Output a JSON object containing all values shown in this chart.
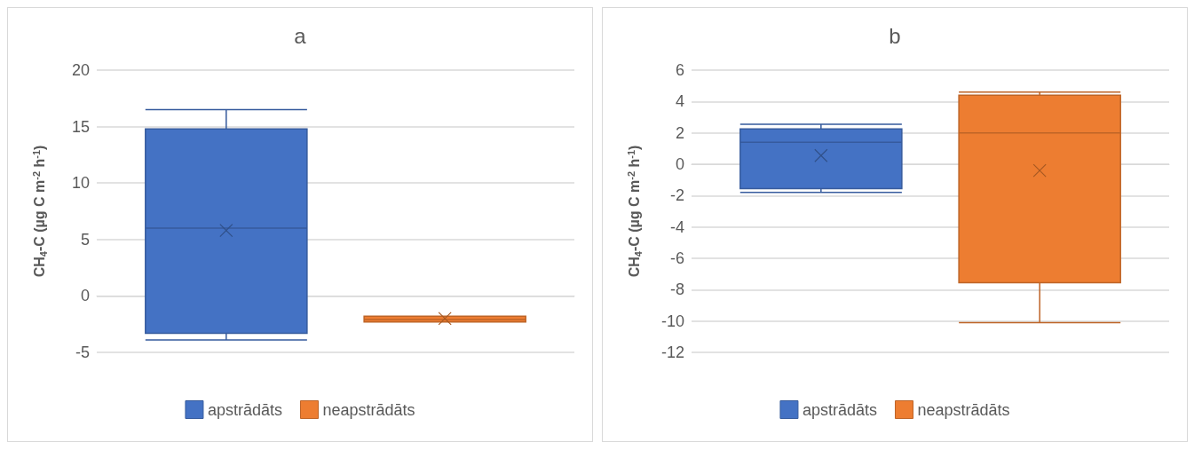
{
  "chart_data": [
    {
      "type": "box",
      "title": "a",
      "ylabel": "CH$_{4}$-C (µg C m$^{-2}$ h$^{-1}$)",
      "categories": [
        null
      ],
      "ylim": [
        -5,
        20
      ],
      "yticks": [
        -5,
        0,
        5,
        10,
        15,
        20
      ],
      "grid": "y",
      "legend": "bottom",
      "marker": "cross",
      "series": [
        {
          "name": "apstrādāts",
          "color": "#4472c4",
          "boxes": [
            {
              "low": -3.9,
              "q1": -3.3,
              "median": 6.0,
              "q3": 14.8,
              "high": 16.5,
              "mean": 5.8
            }
          ]
        },
        {
          "name": "neapstrādāts",
          "color": "#ed7d31",
          "boxes": [
            {
              "low": -2.3,
              "q1": -2.3,
              "median": -2.1,
              "q3": -1.8,
              "high": -1.8,
              "mean": -2.0
            }
          ]
        }
      ]
    },
    {
      "type": "box",
      "title": "b",
      "ylabel": "CH$_{4}$-C (µg C m$^{-2}$ h$^{-1}$)",
      "categories": [
        null
      ],
      "ylim": [
        -12,
        6
      ],
      "yticks": [
        -12,
        -10,
        -8,
        -6,
        -4,
        -2,
        0,
        2,
        4,
        6
      ],
      "grid": "y",
      "legend": "bottom",
      "marker": "cross",
      "series": [
        {
          "name": "apstrādāts",
          "color": "#4472c4",
          "boxes": [
            {
              "low": -1.8,
              "q1": -1.55,
              "median": 1.4,
              "q3": 2.25,
              "high": 2.55,
              "mean": 0.55
            }
          ]
        },
        {
          "name": "neapstrādāts",
          "color": "#ed7d31",
          "boxes": [
            {
              "low": -10.1,
              "q1": -7.55,
              "median": 2.0,
              "q3": 4.4,
              "high": 4.6,
              "mean": -0.4
            }
          ]
        }
      ]
    }
  ]
}
